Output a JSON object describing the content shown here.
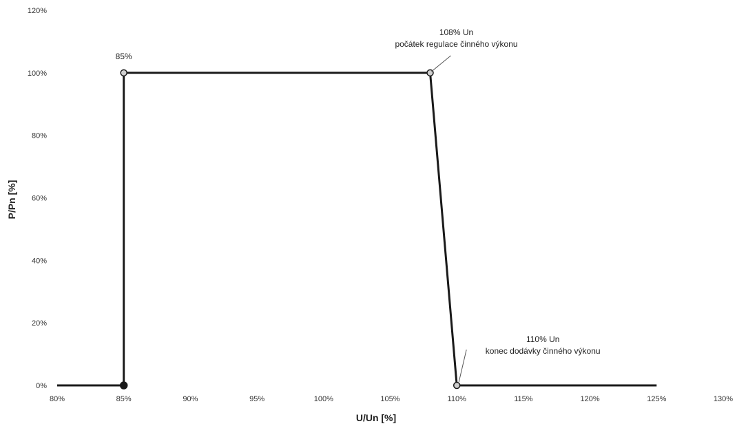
{
  "chart_data": {
    "type": "line",
    "title": "",
    "xlabel": "U/Un [%]",
    "ylabel": "P/Pn [%]",
    "xlim": [
      80,
      130
    ],
    "ylim": [
      0,
      120
    ],
    "x_ticks": [
      80,
      85,
      90,
      95,
      100,
      105,
      110,
      115,
      120,
      125,
      130
    ],
    "y_ticks": [
      0,
      20,
      40,
      60,
      80,
      100,
      120
    ],
    "x_tick_labels": [
      "80%",
      "85%",
      "90%",
      "95%",
      "100%",
      "105%",
      "110%",
      "115%",
      "120%",
      "125%",
      "130%"
    ],
    "y_tick_labels": [
      "0%",
      "20%",
      "40%",
      "60%",
      "80%",
      "100%",
      "120%"
    ],
    "grid": false,
    "series": [
      {
        "x": [
          80,
          85,
          85,
          108,
          110,
          125
        ],
        "y": [
          0,
          0,
          100,
          100,
          0,
          0
        ]
      }
    ],
    "markers": [
      {
        "x": 85,
        "y": 0,
        "style": "filled"
      },
      {
        "x": 85,
        "y": 100,
        "style": "open"
      },
      {
        "x": 108,
        "y": 100,
        "style": "open"
      },
      {
        "x": 110,
        "y": 0,
        "style": "open"
      }
    ],
    "annotations": [
      {
        "x": 85,
        "y": 100,
        "lines": [
          "85%"
        ]
      },
      {
        "x": 108,
        "y": 100,
        "lines": [
          "108% Un",
          "počátek regulace činného výkonu"
        ]
      },
      {
        "x": 110,
        "y": 0,
        "lines": [
          "110% Un",
          "konec dodávky činného výkonu"
        ]
      }
    ],
    "colors": {
      "line": "#1a1a1a",
      "marker_fill": "#cfcfcf"
    }
  }
}
